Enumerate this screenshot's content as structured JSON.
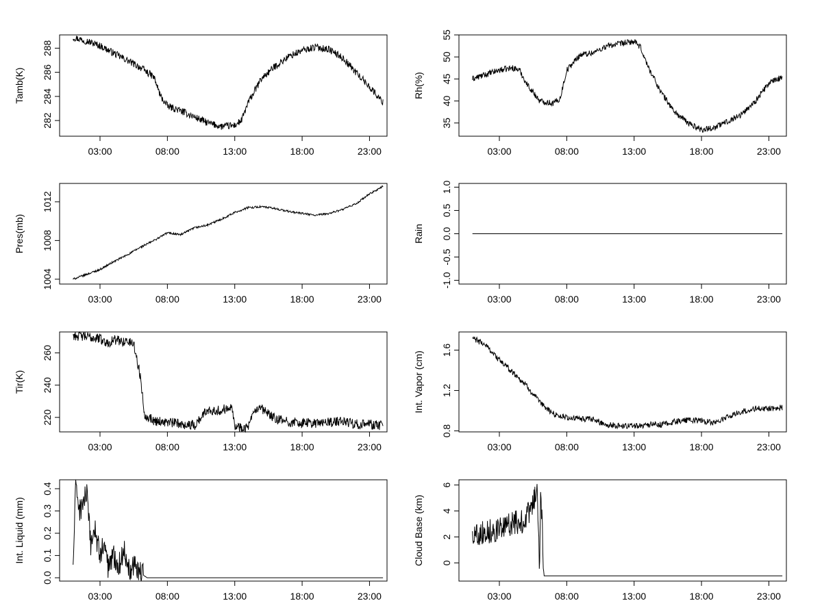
{
  "chart_data": [
    {
      "type": "line",
      "ylabel": "Tamb(K)",
      "xticks": [
        "03:00",
        "08:00",
        "13:00",
        "18:00",
        "23:00"
      ],
      "yticks": [
        282,
        284,
        286,
        288
      ],
      "ylim": [
        280.7,
        289.1
      ],
      "series": [
        {
          "name": "Tamb(K)",
          "x": [
            1.0,
            2.0,
            3.0,
            4.0,
            5.0,
            6.0,
            7.0,
            7.5,
            8.0,
            9.0,
            10.0,
            11.0,
            12.0,
            13.0,
            13.5,
            14.0,
            15.0,
            16.0,
            17.0,
            18.0,
            19.0,
            20.0,
            21.0,
            22.0,
            23.0,
            24.0
          ],
          "y": [
            288.9,
            288.6,
            288.2,
            287.6,
            287.0,
            286.4,
            285.6,
            284.0,
            283.2,
            282.8,
            282.3,
            281.8,
            281.5,
            281.6,
            282.0,
            283.5,
            285.5,
            286.5,
            287.3,
            287.8,
            288.1,
            287.9,
            287.2,
            286.0,
            284.8,
            283.5
          ]
        }
      ]
    },
    {
      "type": "line",
      "ylabel": "Rh(%)",
      "xticks": [
        "03:00",
        "08:00",
        "13:00",
        "18:00",
        "23:00"
      ],
      "yticks": [
        35,
        40,
        45,
        50,
        55
      ],
      "ylim": [
        32,
        55
      ],
      "series": [
        {
          "name": "Rh(%)",
          "x": [
            1.0,
            2.0,
            3.0,
            4.0,
            4.5,
            5.0,
            6.0,
            7.0,
            7.5,
            8.0,
            9.0,
            10.0,
            11.0,
            12.0,
            13.0,
            13.5,
            14.0,
            15.0,
            16.0,
            17.0,
            18.0,
            19.0,
            20.0,
            21.0,
            22.0,
            23.0,
            24.0
          ],
          "y": [
            45.0,
            46.0,
            47.0,
            47.5,
            47.0,
            44.0,
            40.0,
            39.5,
            40.5,
            47.0,
            50.5,
            51.0,
            52.5,
            53.0,
            53.5,
            52.0,
            48.0,
            42.0,
            37.5,
            35.0,
            33.5,
            34.0,
            35.5,
            37.0,
            40.0,
            44.0,
            45.5
          ]
        }
      ]
    },
    {
      "type": "line",
      "ylabel": "Pres(mb)",
      "xticks": [
        "03:00",
        "08:00",
        "13:00",
        "18:00",
        "23:00"
      ],
      "yticks": [
        1004,
        1008,
        1012
      ],
      "ylim": [
        1003.5,
        1013.9
      ],
      "series": [
        {
          "name": "Pres(mb)",
          "x": [
            1.0,
            2.0,
            3.0,
            4.0,
            5.0,
            6.0,
            7.0,
            8.0,
            9.0,
            10.0,
            11.0,
            12.0,
            13.0,
            14.0,
            15.0,
            16.0,
            17.0,
            18.0,
            19.0,
            20.0,
            21.0,
            22.0,
            23.0,
            24.0
          ],
          "y": [
            1004.0,
            1004.5,
            1005.0,
            1005.8,
            1006.5,
            1007.3,
            1008.0,
            1008.8,
            1008.6,
            1009.3,
            1009.6,
            1010.2,
            1010.9,
            1011.4,
            1011.5,
            1011.3,
            1011.0,
            1010.8,
            1010.6,
            1010.8,
            1011.2,
            1011.8,
            1012.8,
            1013.6
          ]
        }
      ]
    },
    {
      "type": "line",
      "ylabel": "Rain",
      "xticks": [
        "03:00",
        "08:00",
        "13:00",
        "18:00",
        "23:00"
      ],
      "yticks": [
        -1.0,
        -0.5,
        0.0,
        0.5,
        1.0
      ],
      "ylim": [
        -1.08,
        1.08
      ],
      "series": [
        {
          "name": "Rain",
          "x": [
            1.0,
            24.0
          ],
          "y": [
            0.0,
            0.0
          ]
        }
      ]
    },
    {
      "type": "line",
      "ylabel": "Tir(K)",
      "xticks": [
        "03:00",
        "08:00",
        "13:00",
        "18:00",
        "23:00"
      ],
      "yticks": [
        220,
        240,
        260
      ],
      "ylim": [
        211,
        273
      ],
      "series": [
        {
          "name": "Tir(K)",
          "x": [
            1.0,
            2.0,
            3.0,
            3.5,
            4.0,
            5.0,
            5.5,
            6.0,
            6.3,
            7.0,
            8.0,
            9.0,
            10.0,
            11.0,
            12.0,
            12.8,
            13.0,
            14.0,
            14.5,
            15.0,
            16.0,
            17.0,
            18.0,
            19.0,
            20.0,
            21.0,
            22.0,
            23.0,
            24.0
          ],
          "y": [
            271.0,
            270.0,
            269.0,
            266.0,
            268.0,
            267.0,
            266.0,
            245.0,
            222.0,
            218.0,
            217.0,
            216.0,
            215.0,
            225.0,
            224.0,
            228.0,
            214.0,
            214.0,
            224.0,
            225.0,
            219.0,
            217.0,
            216.5,
            216.5,
            217.0,
            217.5,
            216.0,
            215.5,
            215.0
          ]
        }
      ]
    },
    {
      "type": "line",
      "ylabel": "Int. Vapor (cm)",
      "xticks": [
        "03:00",
        "08:00",
        "13:00",
        "18:00",
        "23:00"
      ],
      "yticks": [
        0.8,
        1.2,
        1.6
      ],
      "ylim": [
        0.79,
        1.78
      ],
      "series": [
        {
          "name": "Int. Vapor (cm)",
          "x": [
            1.0,
            2.0,
            3.0,
            4.0,
            5.0,
            6.0,
            7.0,
            8.0,
            9.0,
            10.0,
            11.0,
            12.0,
            13.0,
            14.0,
            15.0,
            16.0,
            17.0,
            18.0,
            19.0,
            20.0,
            21.0,
            22.0,
            23.0,
            24.0
          ],
          "y": [
            1.72,
            1.65,
            1.5,
            1.38,
            1.25,
            1.08,
            0.97,
            0.93,
            0.92,
            0.91,
            0.86,
            0.85,
            0.85,
            0.86,
            0.86,
            0.89,
            0.91,
            0.9,
            0.88,
            0.94,
            0.99,
            1.02,
            1.02,
            1.03
          ]
        }
      ]
    },
    {
      "type": "line",
      "ylabel": "Int. Liquid (mm)",
      "xticks": [
        "03:00",
        "08:00",
        "13:00",
        "18:00",
        "23:00"
      ],
      "yticks": [
        0.0,
        0.1,
        0.2,
        0.3,
        0.4
      ],
      "ylim": [
        -0.015,
        0.44
      ],
      "series": [
        {
          "name": "Int. Liquid (mm)",
          "x": [
            1.0,
            1.2,
            1.5,
            2.0,
            2.3,
            2.6,
            3.0,
            3.3,
            3.6,
            4.0,
            4.4,
            4.8,
            5.2,
            5.6,
            6.0,
            6.5,
            24.0
          ],
          "y": [
            0.05,
            0.42,
            0.3,
            0.38,
            0.15,
            0.22,
            0.1,
            0.15,
            0.05,
            0.1,
            0.06,
            0.12,
            0.04,
            0.07,
            0.02,
            0.0,
            0.0
          ]
        }
      ]
    },
    {
      "type": "line",
      "ylabel": "Cloud Base (km)",
      "xticks": [
        "03:00",
        "08:00",
        "13:00",
        "18:00",
        "23:00"
      ],
      "yticks": [
        0,
        2,
        4,
        6
      ],
      "ylim": [
        -1.4,
        6.4
      ],
      "series": [
        {
          "name": "Cloud Base (km)",
          "x": [
            1.0,
            1.5,
            2.0,
            2.5,
            3.0,
            3.5,
            4.0,
            4.5,
            5.0,
            5.5,
            5.8,
            6.0,
            6.05,
            6.2,
            6.3,
            24.0
          ],
          "y": [
            2.2,
            2.3,
            2.4,
            2.5,
            2.6,
            2.7,
            3.2,
            3.0,
            3.5,
            4.5,
            6.0,
            -1.0,
            6.0,
            2.3,
            -1.0,
            -1.0
          ]
        }
      ]
    }
  ]
}
